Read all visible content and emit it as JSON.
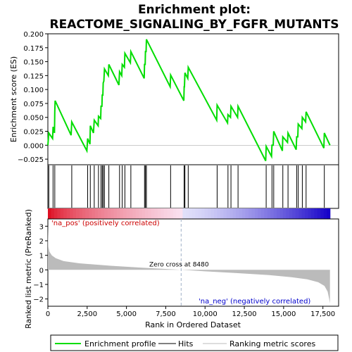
{
  "chart_data": {
    "type": "line",
    "title": "Enrichment plot:\nREACTOME_SIGNALING_BY_FGFR_MUTANTS",
    "title_lines": [
      "Enrichment plot:",
      "REACTOME_SIGNALING_BY_FGFR_MUTANTS"
    ],
    "top_panel": {
      "ylabel": "Enrichment score (ES)",
      "ylim": [
        -0.035,
        0.2
      ],
      "yticks": [
        -0.025,
        0.0,
        0.025,
        0.05,
        0.075,
        0.1,
        0.125,
        0.15,
        0.175,
        0.2
      ],
      "ytick_labels": [
        "−0.025",
        "0.000",
        "0.025",
        "0.050",
        "0.075",
        "0.100",
        "0.125",
        "0.150",
        "0.175",
        "0.200"
      ],
      "series": [
        {
          "name": "Enrichment profile",
          "color": "#00dd00",
          "points": [
            [
              0,
              0.0
            ],
            [
              60,
              0.022
            ],
            [
              300,
              0.012
            ],
            [
              330,
              0.033
            ],
            [
              420,
              0.022
            ],
            [
              440,
              0.06
            ],
            [
              460,
              0.08
            ],
            [
              1480,
              0.018
            ],
            [
              1520,
              0.042
            ],
            [
              2480,
              -0.01
            ],
            [
              2530,
              0.012
            ],
            [
              2680,
              0.002
            ],
            [
              2700,
              0.035
            ],
            [
              2900,
              0.022
            ],
            [
              2950,
              0.045
            ],
            [
              3200,
              0.035
            ],
            [
              3220,
              0.052
            ],
            [
              3360,
              0.048
            ],
            [
              3380,
              0.07
            ],
            [
              3440,
              0.07
            ],
            [
              3460,
              0.09
            ],
            [
              3500,
              0.09
            ],
            [
              3520,
              0.112
            ],
            [
              3560,
              0.115
            ],
            [
              3600,
              0.137
            ],
            [
              3850,
              0.125
            ],
            [
              3880,
              0.145
            ],
            [
              4520,
              0.108
            ],
            [
              4560,
              0.132
            ],
            [
              4700,
              0.125
            ],
            [
              4730,
              0.145
            ],
            [
              4870,
              0.14
            ],
            [
              4900,
              0.165
            ],
            [
              5250,
              0.148
            ],
            [
              5280,
              0.168
            ],
            [
              6130,
              0.12
            ],
            [
              6150,
              0.145
            ],
            [
              6190,
              0.145
            ],
            [
              6210,
              0.168
            ],
            [
              6250,
              0.168
            ],
            [
              6270,
              0.19
            ],
            [
              7780,
              0.105
            ],
            [
              7810,
              0.126
            ],
            [
              8650,
              0.08
            ],
            [
              8670,
              0.105
            ],
            [
              8690,
              0.105
            ],
            [
              8720,
              0.13
            ],
            [
              8900,
              0.12
            ],
            [
              8930,
              0.14
            ],
            [
              10740,
              0.045
            ],
            [
              10770,
              0.072
            ],
            [
              11430,
              0.04
            ],
            [
              11460,
              0.055
            ],
            [
              11620,
              0.05
            ],
            [
              11650,
              0.07
            ],
            [
              12070,
              0.05
            ],
            [
              12100,
              0.07
            ],
            [
              13860,
              -0.028
            ],
            [
              13890,
              -0.002
            ],
            [
              14230,
              -0.02
            ],
            [
              14260,
              0.0
            ],
            [
              14340,
              0.0
            ],
            [
              14370,
              0.025
            ],
            [
              14920,
              -0.01
            ],
            [
              14950,
              0.015
            ],
            [
              15250,
              0.005
            ],
            [
              15280,
              0.022
            ],
            [
              15800,
              -0.008
            ],
            [
              15830,
              0.015
            ],
            [
              15900,
              0.015
            ],
            [
              15930,
              0.038
            ],
            [
              16160,
              0.03
            ],
            [
              16190,
              0.05
            ],
            [
              16400,
              0.042
            ],
            [
              16430,
              0.06
            ],
            [
              17560,
              -0.005
            ],
            [
              17590,
              0.022
            ],
            [
              17950,
              0.0
            ]
          ]
        }
      ],
      "hits": [
        60,
        330,
        440,
        1520,
        2530,
        2700,
        2950,
        3220,
        3380,
        3460,
        3520,
        3600,
        3880,
        4560,
        4730,
        4900,
        5280,
        6150,
        6210,
        6270,
        7810,
        8670,
        8720,
        8930,
        10770,
        11460,
        11650,
        12100,
        13890,
        14260,
        14370,
        14950,
        15280,
        15830,
        15930,
        16190,
        16430,
        17590
      ]
    },
    "bottom_panel": {
      "ylabel": "Ranked list metric (PreRanked)",
      "xlabel": "Rank in Ordered Dataset",
      "ylim": [
        -2.5,
        3.5
      ],
      "yticks": [
        -2,
        -1,
        0,
        1,
        2,
        3
      ],
      "ytick_labels": [
        "−2",
        "−1",
        "0",
        "1",
        "2",
        "3"
      ],
      "metric_curve": [
        [
          0,
          3.1
        ],
        [
          30,
          1.6
        ],
        [
          100,
          1.25
        ],
        [
          250,
          1.0
        ],
        [
          500,
          0.8
        ],
        [
          1000,
          0.6
        ],
        [
          2000,
          0.45
        ],
        [
          4000,
          0.28
        ],
        [
          6000,
          0.15
        ],
        [
          8480,
          0.0
        ],
        [
          10000,
          -0.1
        ],
        [
          12000,
          -0.22
        ],
        [
          14000,
          -0.35
        ],
        [
          15500,
          -0.5
        ],
        [
          16500,
          -0.65
        ],
        [
          17200,
          -0.85
        ],
        [
          17600,
          -1.1
        ],
        [
          17800,
          -1.5
        ],
        [
          17900,
          -2.0
        ],
        [
          17950,
          -2.3
        ]
      ],
      "zero_cross_label": "Zero cross at 8480",
      "zero_cross": 8480,
      "pos_label": "'na_pos' (positively correlated)",
      "neg_label": "'na_neg' (negatively correlated)"
    },
    "xlim": [
      0,
      18500
    ],
    "xticks": [
      0,
      2500,
      5000,
      7500,
      10000,
      12500,
      15000,
      17500
    ],
    "xtick_labels": [
      "0",
      "2,500",
      "5,000",
      "7,500",
      "10,000",
      "12,500",
      "15,000",
      "17,500"
    ],
    "legend": {
      "placement": "bottom",
      "entries": [
        {
          "label": "Enrichment profile",
          "color": "#00dd00"
        },
        {
          "label": "Hits",
          "color": "#000000"
        },
        {
          "label": "Ranking metric scores",
          "color": "#bbbbbb"
        }
      ]
    },
    "colors": {
      "profile": "#00dd00",
      "hits": "#000000",
      "metric_fill": "#bbbbbb",
      "pos_text": "#cc0000",
      "neg_text": "#0000cc"
    }
  }
}
